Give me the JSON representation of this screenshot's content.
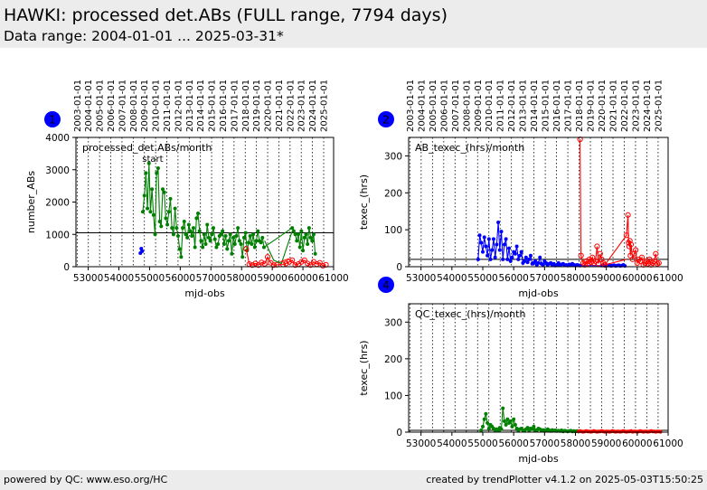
{
  "header": {
    "title": "HAWKI: processed det.ABs (FULL range, 7794 days)",
    "subtitle": "Data range: 2004-01-01 ... 2025-03-31*"
  },
  "footer": {
    "left": "powered by QC: www.eso.org/HC",
    "right": "created by trendPlotter v4.1.2 on 2025-05-03T15:50:25"
  },
  "colors": {
    "series_1": "#0000ff",
    "series_2": "#008000",
    "series_3": "#ff0000",
    "reference": "#000000",
    "badge": "#0000ff"
  },
  "chart_data": [
    {
      "id": 1,
      "badge": "1",
      "type": "line",
      "title": "processed_det.ABs/month",
      "annotation": "start",
      "annotation_at_mjd": 54700,
      "xlabel": "mjd-obs",
      "ylabel": "number_ABs",
      "xlim": [
        52600,
        61000
      ],
      "ylim": [
        0,
        4000
      ],
      "xticks": [
        53000,
        54000,
        55000,
        56000,
        57000,
        58000,
        59000,
        60000,
        61000
      ],
      "yticks": [
        0,
        1000,
        2000,
        3000,
        4000
      ],
      "date_ticks": [
        "2003-01-01",
        "2004-01-01",
        "2005-01-01",
        "2006-01-01",
        "2007-01-01",
        "2008-01-01",
        "2009-01-01",
        "2010-01-01",
        "2011-01-01",
        "2012-01-01",
        "2013-01-01",
        "2014-01-01",
        "2015-01-01",
        "2016-01-01",
        "2017-01-01",
        "2018-01-01",
        "2019-01-01",
        "2020-01-01",
        "2021-01-01",
        "2022-01-01",
        "2023-01-01",
        "2024-01-01",
        "2025-01-01"
      ],
      "date_ticks_mjd": [
        52640,
        53005,
        53371,
        53736,
        54101,
        54466,
        54832,
        55197,
        55562,
        55927,
        56293,
        56658,
        57023,
        57388,
        57754,
        58119,
        58484,
        58849,
        59215,
        59580,
        59945,
        60310,
        60676
      ],
      "reference_line": 1050,
      "series": [
        {
          "color": "blue",
          "marker": "dot",
          "x": [
            54700,
            54730,
            54760
          ],
          "y": [
            420,
            560,
            480
          ]
        },
        {
          "color": "green",
          "marker": "dot",
          "x": [
            54780,
            54830,
            54880,
            54930,
            54980,
            55030,
            55080,
            55130,
            55180,
            55230,
            55280,
            55330,
            55380,
            55430,
            55480,
            55530,
            55580,
            55630,
            55680,
            55730,
            55780,
            55830,
            55880,
            55930,
            55980,
            56030,
            56080,
            56130,
            56180,
            56230,
            56280,
            56330,
            56380,
            56430,
            56480,
            56530,
            56580,
            56630,
            56680,
            56730,
            56780,
            56830,
            56880,
            56930,
            56980,
            57030,
            57080,
            57130,
            57180,
            57230,
            57280,
            57330,
            57380,
            57430,
            57480,
            57530,
            57580,
            57630,
            57680,
            57730,
            57780,
            57830,
            57880,
            57930,
            57980,
            58030,
            58080,
            58130,
            58180,
            58230,
            58280,
            58330,
            58380,
            58430,
            58480,
            58530,
            58580,
            58630,
            58680,
            58730,
            59650,
            59700,
            59750,
            59800,
            59850,
            59900,
            59950,
            60000,
            60050,
            60100,
            60150,
            60200,
            60250,
            60300,
            60350,
            60400
          ],
          "y": [
            1700,
            2200,
            2900,
            1800,
            3200,
            1700,
            2400,
            1600,
            1000,
            2900,
            3050,
            1400,
            1250,
            2400,
            2300,
            1500,
            1300,
            1700,
            2100,
            1200,
            1000,
            1800,
            1200,
            950,
            550,
            300,
            1200,
            1400,
            1000,
            900,
            1300,
            1100,
            950,
            1200,
            600,
            1500,
            1650,
            1100,
            800,
            600,
            1000,
            700,
            1300,
            900,
            800,
            1000,
            1200,
            850,
            600,
            700,
            950,
            1000,
            1100,
            700,
            950,
            550,
            800,
            1000,
            400,
            900,
            700,
            950,
            1200,
            800,
            700,
            300,
            900,
            1050,
            500,
            750,
            950,
            700,
            1000,
            600,
            800,
            1100,
            800,
            750,
            900,
            600,
            1200,
            1100,
            1000,
            800,
            1000,
            600,
            1100,
            500,
            900,
            1000,
            700,
            1200,
            900,
            800,
            1000,
            400
          ]
        },
        {
          "color": "red",
          "marker": "circle",
          "x": [
            58150,
            58250,
            58350,
            58450,
            58550,
            58650,
            58750,
            58850,
            58950,
            59050,
            59150,
            59350,
            59450,
            59550,
            59650,
            59750,
            59850,
            59950,
            60050,
            60150,
            60250,
            60350,
            60450,
            60550,
            60650,
            60750
          ],
          "y": [
            550,
            80,
            50,
            100,
            50,
            130,
            90,
            300,
            120,
            50,
            60,
            70,
            100,
            150,
            200,
            50,
            80,
            150,
            200,
            100,
            50,
            150,
            80,
            120,
            30,
            60
          ]
        },
        {
          "color": "green",
          "marker": "none",
          "x": [
            58750,
            59050,
            59300,
            59650
          ],
          "y": [
            800,
            200,
            100,
            1100
          ]
        },
        {
          "color": "red",
          "marker": "none",
          "x": [
            59250,
            59550
          ],
          "y": [
            150,
            250
          ]
        }
      ]
    },
    {
      "id": 2,
      "badge": "2",
      "type": "line",
      "title": "AB_texec_(hrs)/month",
      "xlabel": "mjd-obs",
      "ylabel": "texec_(hrs)",
      "xlim": [
        52600,
        61000
      ],
      "ylim": [
        0,
        350
      ],
      "xticks": [
        53000,
        54000,
        55000,
        56000,
        57000,
        58000,
        59000,
        60000,
        61000
      ],
      "yticks": [
        0,
        100,
        200,
        300
      ],
      "date_ticks": [
        "2003-01-01",
        "2004-01-01",
        "2005-01-01",
        "2006-01-01",
        "2007-01-01",
        "2008-01-01",
        "2009-01-01",
        "2010-01-01",
        "2011-01-01",
        "2012-01-01",
        "2013-01-01",
        "2014-01-01",
        "2015-01-01",
        "2016-01-01",
        "2017-01-01",
        "2018-01-01",
        "2019-01-01",
        "2020-01-01",
        "2021-01-01",
        "2022-01-01",
        "2023-01-01",
        "2024-01-01",
        "2025-01-01"
      ],
      "date_ticks_mjd": [
        52640,
        53005,
        53371,
        53736,
        54101,
        54466,
        54832,
        55197,
        55562,
        55927,
        56293,
        56658,
        57023,
        57388,
        57754,
        58119,
        58484,
        58849,
        59215,
        59580,
        59945,
        60310,
        60676
      ],
      "reference_line": 20,
      "series": [
        {
          "color": "blue",
          "marker": "dot",
          "x": [
            54850,
            54900,
            54950,
            55000,
            55050,
            55100,
            55150,
            55200,
            55250,
            55300,
            55350,
            55400,
            55450,
            55500,
            55550,
            55600,
            55650,
            55700,
            55750,
            55800,
            55850,
            55900,
            55950,
            56000,
            56050,
            56100,
            56150,
            56200,
            56250,
            56300,
            56350,
            56400,
            56450,
            56500,
            56550,
            56600,
            56650,
            56700,
            56750,
            56800,
            56850,
            56900,
            56950,
            57000,
            57050,
            57100,
            57150,
            57200,
            57250,
            57300,
            57350,
            57400,
            57450,
            57500,
            57550,
            57600,
            57650,
            57700,
            57750,
            57800,
            57850,
            57900,
            57950,
            58000,
            58050,
            58100,
            58150,
            58850,
            58900,
            58950,
            59000,
            59050,
            59100,
            59150,
            59200,
            59250,
            59300,
            59350,
            59400,
            59450,
            59500,
            59550,
            59600
          ],
          "y": [
            20,
            85,
            65,
            40,
            80,
            55,
            30,
            75,
            20,
            45,
            75,
            25,
            60,
            120,
            45,
            95,
            20,
            60,
            75,
            20,
            50,
            15,
            25,
            40,
            35,
            55,
            20,
            30,
            40,
            10,
            15,
            25,
            12,
            20,
            30,
            8,
            10,
            15,
            5,
            10,
            25,
            8,
            5,
            15,
            10,
            5,
            8,
            10,
            5,
            8,
            3,
            5,
            10,
            4,
            6,
            8,
            4,
            5,
            3,
            6,
            4,
            8,
            5,
            3,
            5,
            4,
            3,
            3,
            5,
            2,
            4,
            3,
            5,
            2,
            3,
            4,
            2,
            3,
            4,
            2,
            3,
            5,
            2
          ]
        },
        {
          "color": "red",
          "marker": "circle",
          "x": [
            58150,
            58180,
            58250,
            58300,
            58350,
            58400,
            58450,
            58500,
            58550,
            58600,
            58650,
            58700,
            58750,
            58800,
            58850,
            58900,
            58950,
            59650,
            59700,
            59720,
            59740,
            59760,
            59780,
            59800,
            59850,
            59900,
            59950,
            60000,
            60050,
            60100,
            60150,
            60200,
            60250,
            60300,
            60350,
            60400,
            60450,
            60500,
            60550,
            60600,
            60650,
            60700
          ],
          "y": [
            345,
            30,
            10,
            5,
            15,
            8,
            20,
            12,
            25,
            10,
            15,
            55,
            8,
            35,
            20,
            10,
            5,
            85,
            140,
            65,
            55,
            70,
            30,
            60,
            20,
            35,
            45,
            10,
            20,
            15,
            25,
            5,
            10,
            15,
            8,
            20,
            5,
            10,
            15,
            35,
            8,
            10
          ]
        },
        {
          "color": "red",
          "marker": "none",
          "x": [
            58950,
            59650
          ],
          "y": [
            5,
            20
          ]
        }
      ]
    },
    {
      "id": 4,
      "badge": "4",
      "type": "line",
      "title": "QC_texec_(hrs)/month",
      "xlabel": "mjd-obs",
      "ylabel": "texec_(hrs)",
      "xlim": [
        52600,
        61000
      ],
      "ylim": [
        0,
        350
      ],
      "xticks": [
        53000,
        54000,
        55000,
        56000,
        57000,
        58000,
        59000,
        60000,
        61000
      ],
      "yticks": [
        0,
        100,
        200,
        300
      ],
      "date_ticks_mjd": [
        52640,
        53005,
        53371,
        53736,
        54101,
        54466,
        54832,
        55197,
        55562,
        55927,
        56293,
        56658,
        57023,
        57388,
        57754,
        58119,
        58484,
        58849,
        59215,
        59580,
        59945,
        60310,
        60676
      ],
      "reference_line": 5,
      "series": [
        {
          "color": "green",
          "marker": "dot",
          "x": [
            54950,
            55000,
            55050,
            55100,
            55150,
            55200,
            55250,
            55300,
            55350,
            55400,
            55450,
            55500,
            55550,
            55600,
            55650,
            55700,
            55750,
            55800,
            55850,
            55900,
            55950,
            56000,
            56050,
            56100,
            56150,
            56200,
            56250,
            56300,
            56350,
            56400,
            56450,
            56500,
            56550,
            56600,
            56650,
            56700,
            56750,
            56800,
            56850,
            56900,
            56950,
            57000,
            57050,
            57100,
            57150,
            57200,
            57250,
            57300,
            57350,
            57400,
            57450,
            57500,
            57550,
            57600,
            57650,
            57700,
            57750,
            57800,
            57850,
            57900,
            57950,
            58000,
            58050,
            58100
          ],
          "y": [
            5,
            15,
            35,
            50,
            25,
            10,
            20,
            15,
            10,
            5,
            8,
            5,
            12,
            8,
            65,
            30,
            20,
            35,
            25,
            30,
            15,
            35,
            20,
            10,
            5,
            8,
            10,
            6,
            4,
            8,
            12,
            5,
            10,
            8,
            15,
            6,
            5,
            10,
            8,
            4,
            6,
            5,
            4,
            8,
            5,
            3,
            6,
            4,
            5,
            3,
            4,
            3,
            5,
            2,
            4,
            3,
            2,
            3,
            4,
            2,
            3,
            2,
            3,
            2
          ]
        },
        {
          "color": "red",
          "marker": "dot",
          "x": [
            58100,
            58150,
            58200,
            58250,
            58300,
            58350,
            58400,
            58450,
            58500,
            58550,
            58600,
            58650,
            58700,
            58750,
            58800,
            58850,
            58900,
            58950,
            59000,
            59050,
            59100,
            59150,
            59200,
            59250,
            59300,
            59350,
            59400,
            59450,
            59500,
            59550,
            59600,
            59650,
            59700,
            59750,
            59800,
            59850,
            59900,
            59950,
            60000,
            60050,
            60100,
            60150,
            60200,
            60250,
            60300,
            60350,
            60400,
            60450,
            60500,
            60550,
            60600,
            60650,
            60700,
            60750
          ],
          "y": [
            2,
            3,
            2,
            1,
            2,
            3,
            2,
            2,
            1,
            2,
            3,
            2,
            1,
            2,
            2,
            3,
            2,
            1,
            2,
            2,
            1,
            2,
            3,
            2,
            1,
            2,
            2,
            1,
            2,
            3,
            2,
            1,
            2,
            2,
            3,
            1,
            2,
            2,
            1,
            2,
            3,
            2,
            1,
            2,
            2,
            1,
            2,
            3,
            2,
            2,
            1,
            2,
            2,
            1
          ]
        }
      ]
    }
  ]
}
